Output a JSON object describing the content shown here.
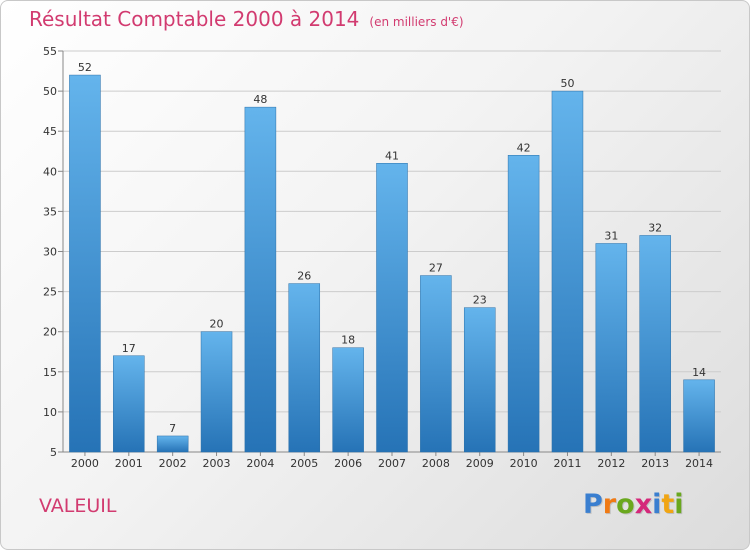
{
  "title": "Résultat Comptable 2000 à 2014",
  "subtitle": "(en milliers d'€)",
  "commune": "VALEUIL",
  "logo": {
    "text": "Proxiti",
    "letters": [
      "P",
      "r",
      "o",
      "x",
      "i",
      "t",
      "i"
    ],
    "colors": [
      "#3a7fd0",
      "#f07a14",
      "#6aa81e",
      "#d5287a",
      "#3a7fd0",
      "#f0a514",
      "#6aa81e"
    ]
  },
  "colors": {
    "bar_light": "#64b4ec",
    "bar_dark": "#2673b6",
    "title": "#d23b70"
  },
  "chart_data": {
    "type": "bar",
    "title": "Résultat Comptable 2000 à 2014",
    "subtitle": "(en milliers d'€)",
    "categories": [
      "2000",
      "2001",
      "2002",
      "2003",
      "2004",
      "2005",
      "2006",
      "2007",
      "2008",
      "2009",
      "2010",
      "2011",
      "2012",
      "2013",
      "2014"
    ],
    "values": [
      52,
      17,
      7,
      20,
      48,
      26,
      18,
      41,
      27,
      23,
      42,
      50,
      31,
      32,
      14
    ],
    "xlabel": "",
    "ylabel": "",
    "ylim": [
      5,
      55
    ],
    "yticks": [
      5,
      10,
      15,
      20,
      25,
      30,
      35,
      40,
      45,
      50,
      55
    ],
    "grid": true,
    "data_labels": true
  }
}
